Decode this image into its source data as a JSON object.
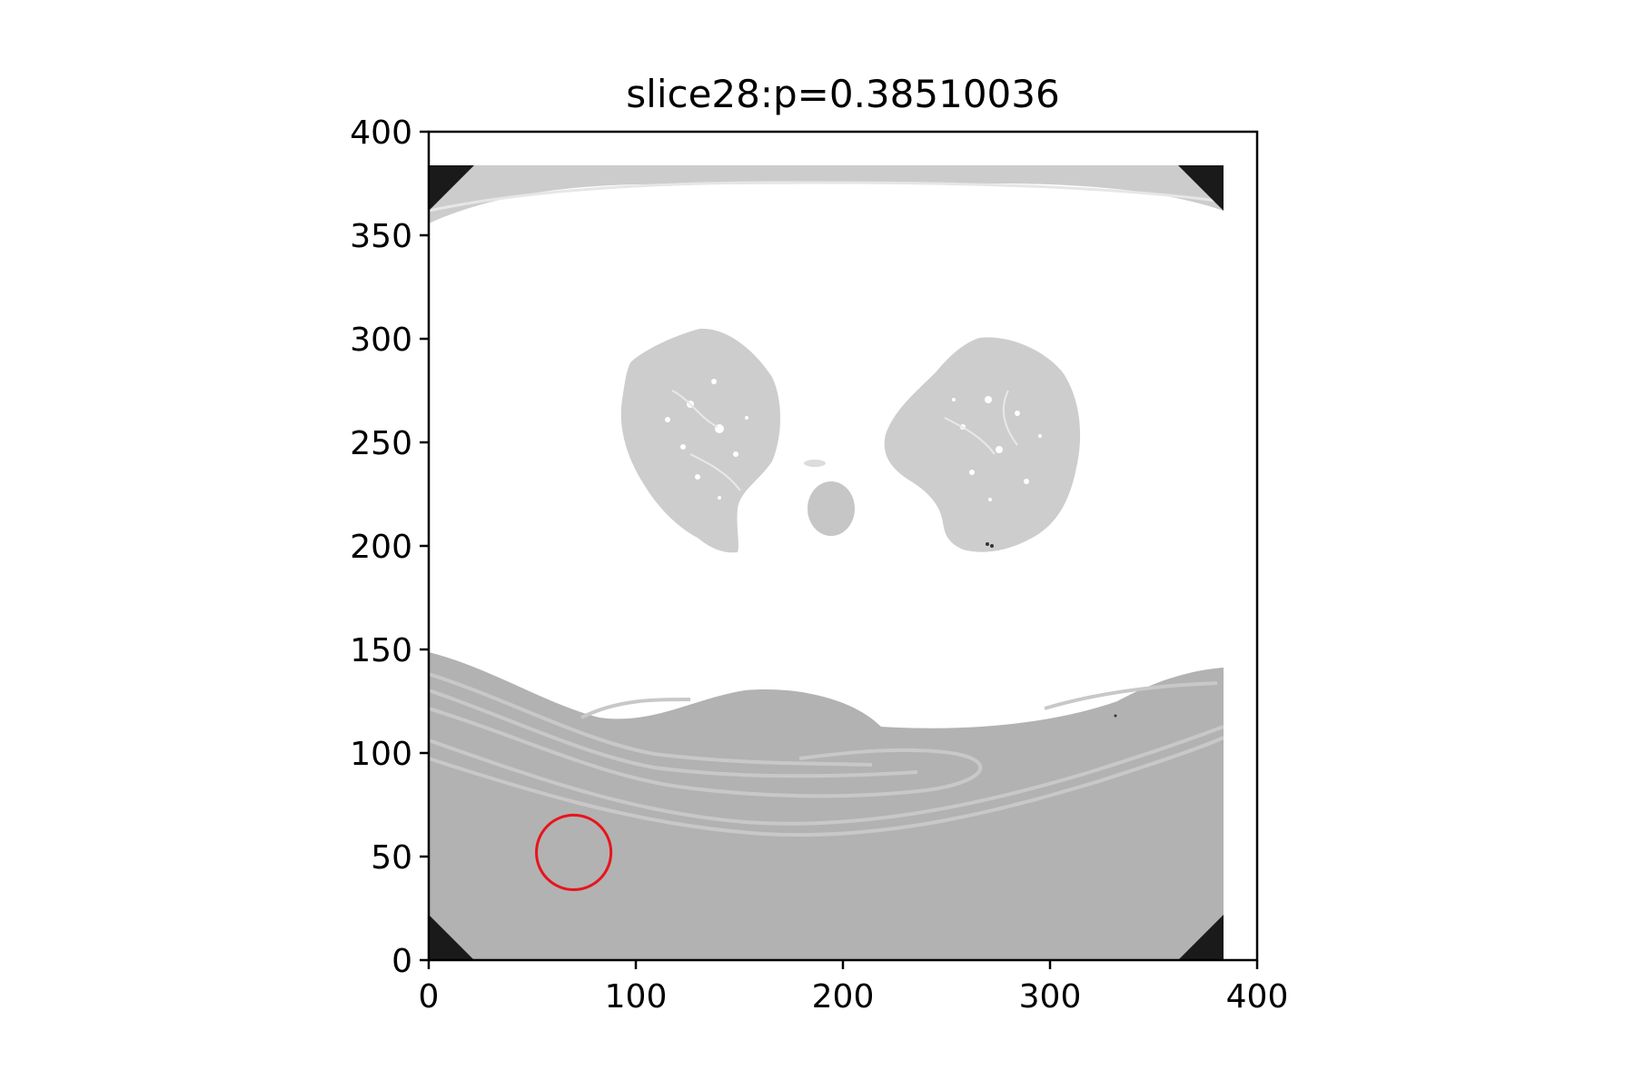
{
  "figure": {
    "title": "slice28:p=0.38510036"
  },
  "axes": {
    "xlim": [
      0,
      400
    ],
    "ylim": [
      0,
      400
    ],
    "x_ticks": [
      {
        "value": 0,
        "label": "0"
      },
      {
        "value": 100,
        "label": "100"
      },
      {
        "value": 200,
        "label": "200"
      },
      {
        "value": 300,
        "label": "300"
      },
      {
        "value": 400,
        "label": "400"
      }
    ],
    "y_ticks": [
      {
        "value": 0,
        "label": "0"
      },
      {
        "value": 50,
        "label": "50"
      },
      {
        "value": 100,
        "label": "100"
      },
      {
        "value": 150,
        "label": "150"
      },
      {
        "value": 200,
        "label": "200"
      },
      {
        "value": 250,
        "label": "250"
      },
      {
        "value": 300,
        "label": "300"
      },
      {
        "value": 350,
        "label": "350"
      },
      {
        "value": 400,
        "label": "400"
      }
    ]
  },
  "image": {
    "kind": "axial CT slice, lung window",
    "extent_x": [
      0,
      384
    ],
    "extent_y": [
      0,
      384
    ]
  },
  "marker": {
    "shape": "circle",
    "center_x": 70,
    "center_y": 52,
    "radius": 18,
    "color": "#e8141c"
  },
  "colors": {
    "soft_tissue": "#ffffff",
    "lung": "#cfcfcf",
    "table": "#b0b0b0",
    "corner_mask": "#1a1a1a"
  }
}
